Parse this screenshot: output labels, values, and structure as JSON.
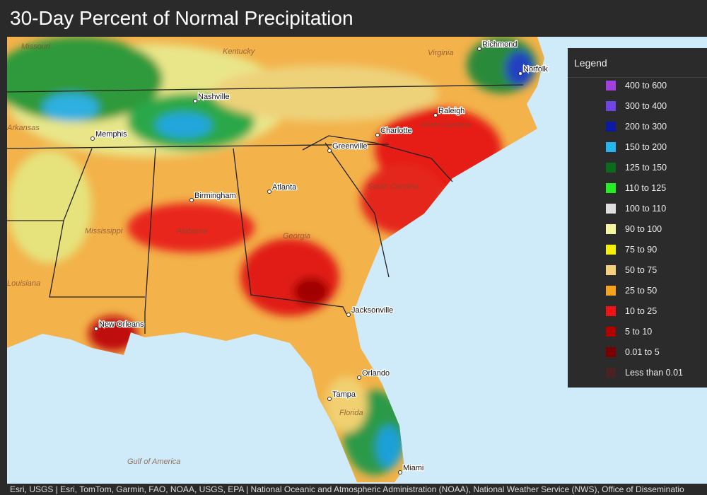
{
  "header": {
    "title": "30-Day Percent of Normal Precipitation"
  },
  "legend": {
    "title": "Legend",
    "items": [
      {
        "label": "400 to 600",
        "color": "#a23fe0"
      },
      {
        "label": "300 to 400",
        "color": "#6f45e6"
      },
      {
        "label": "200 to 300",
        "color": "#0b1aa3"
      },
      {
        "label": "150 to 200",
        "color": "#21b6f0"
      },
      {
        "label": "125 to 150",
        "color": "#0b6a1d"
      },
      {
        "label": "110 to 125",
        "color": "#22f022"
      },
      {
        "label": "100 to 110",
        "color": "#dedede"
      },
      {
        "label": "90 to 100",
        "color": "#f5f5a2"
      },
      {
        "label": "75 to 90",
        "color": "#f5f000"
      },
      {
        "label": "50 to 75",
        "color": "#f5cf7e"
      },
      {
        "label": "25 to 50",
        "color": "#f5a21f"
      },
      {
        "label": "10 to 25",
        "color": "#f01212"
      },
      {
        "label": "5 to 10",
        "color": "#b00000"
      },
      {
        "label": "0.01 to 5",
        "color": "#7a0000"
      },
      {
        "label": "Less than 0.01",
        "color": "#4a2222"
      }
    ]
  },
  "map": {
    "cities": [
      "Richmond",
      "Norfolk",
      "Nashville",
      "Memphis",
      "Raleigh",
      "Charlotte",
      "Greenville",
      "Atlanta",
      "Birmingham",
      "New Orleans",
      "Jacksonville",
      "Orlando",
      "Tampa",
      "Miami"
    ],
    "regions": [
      "Virginia",
      "Kentucky",
      "Missouri",
      "Arkansas",
      "North Carolina",
      "South Carolina",
      "Mississippi",
      "Alabama",
      "Georgia",
      "Louisiana",
      "Florida",
      "Gulf of America"
    ]
  },
  "attribution": "Esri, USGS | Esri, TomTom, Garmin, FAO, NOAA, USGS, EPA | National Oceanic and Atmospheric Administration (NOAA), National Weather Service (NWS), Office of Disseminatio"
}
